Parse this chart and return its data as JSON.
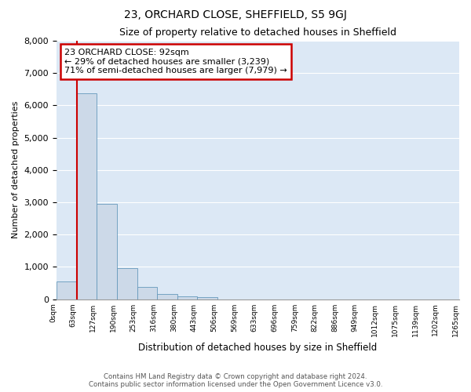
{
  "title": "23, ORCHARD CLOSE, SHEFFIELD, S5 9GJ",
  "subtitle": "Size of property relative to detached houses in Sheffield",
  "xlabel": "Distribution of detached houses by size in Sheffield",
  "ylabel": "Number of detached properties",
  "bar_color": "#ccd9e8",
  "bar_edge_color": "#6699bb",
  "bar_values": [
    560,
    6380,
    2950,
    960,
    370,
    160,
    90,
    60,
    0,
    0,
    0,
    0,
    0,
    0,
    0,
    0,
    0,
    0,
    0,
    0
  ],
  "x_labels": [
    "0sqm",
    "63sqm",
    "127sqm",
    "190sqm",
    "253sqm",
    "316sqm",
    "380sqm",
    "443sqm",
    "506sqm",
    "569sqm",
    "633sqm",
    "696sqm",
    "759sqm",
    "822sqm",
    "886sqm",
    "949sqm",
    "1012sqm",
    "1075sqm",
    "1139sqm",
    "1202sqm",
    "1265sqm"
  ],
  "ylim": [
    0,
    8000
  ],
  "yticks": [
    0,
    1000,
    2000,
    3000,
    4000,
    5000,
    6000,
    7000,
    8000
  ],
  "property_line_x": 1,
  "annotation_text": "23 ORCHARD CLOSE: 92sqm\n← 29% of detached houses are smaller (3,239)\n71% of semi-detached houses are larger (7,979) →",
  "annotation_box_color": "#cc0000",
  "bg_color": "#dce8f5",
  "fig_bg_color": "#ffffff",
  "footer_text": "Contains HM Land Registry data © Crown copyright and database right 2024.\nContains public sector information licensed under the Open Government Licence v3.0.",
  "grid_color": "#ffffff",
  "bar_line_color": "#cc0000"
}
